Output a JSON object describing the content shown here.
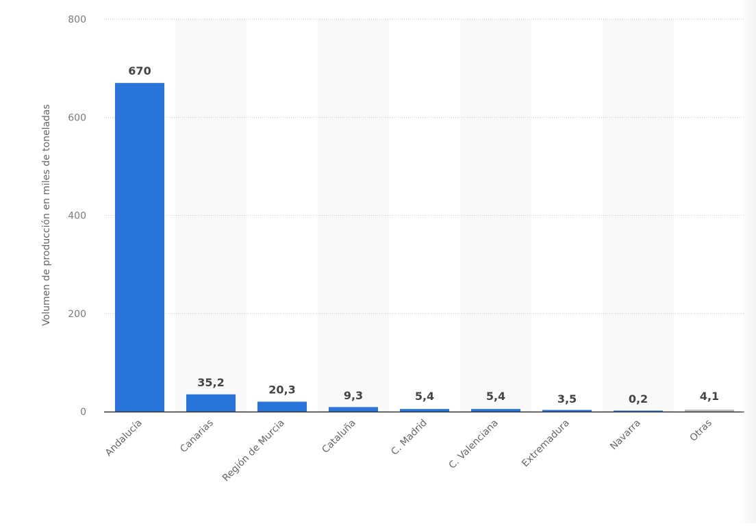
{
  "chart_data": {
    "type": "bar",
    "title": "",
    "xlabel": "",
    "ylabel": "Volumen de producción en miles de toneladas",
    "ylim": [
      0,
      800
    ],
    "yticks": [
      0,
      200,
      400,
      600,
      800
    ],
    "grid": true,
    "legend": null,
    "categories": [
      "Andalucía",
      "Canarias",
      "Región de Murcia",
      "Cataluña",
      "C. Madrid",
      "C. Valenciana",
      "Extremadura",
      "Navarra",
      "Otras"
    ],
    "values": [
      670,
      35.2,
      20.3,
      9.3,
      5.4,
      5.4,
      3.5,
      0.2,
      4.1
    ],
    "value_labels": [
      "670",
      "35,2",
      "20,3",
      "9,3",
      "5,4",
      "5,4",
      "3,5",
      "0,2",
      "4,1"
    ],
    "bar_colors": [
      "#2874d8",
      "#2874d8",
      "#2874d8",
      "#2874d8",
      "#2874d8",
      "#2874d8",
      "#2874d8",
      "#2874d8",
      "#bdbdbd"
    ]
  },
  "colors": {
    "bar": "#2874d8",
    "bar_other": "#bdbdbd",
    "band": "#f8f8f8",
    "grid": "#c8c8c8",
    "axis": "#333333",
    "tick_label": "#7a7a7a",
    "value_label": "#444444"
  }
}
